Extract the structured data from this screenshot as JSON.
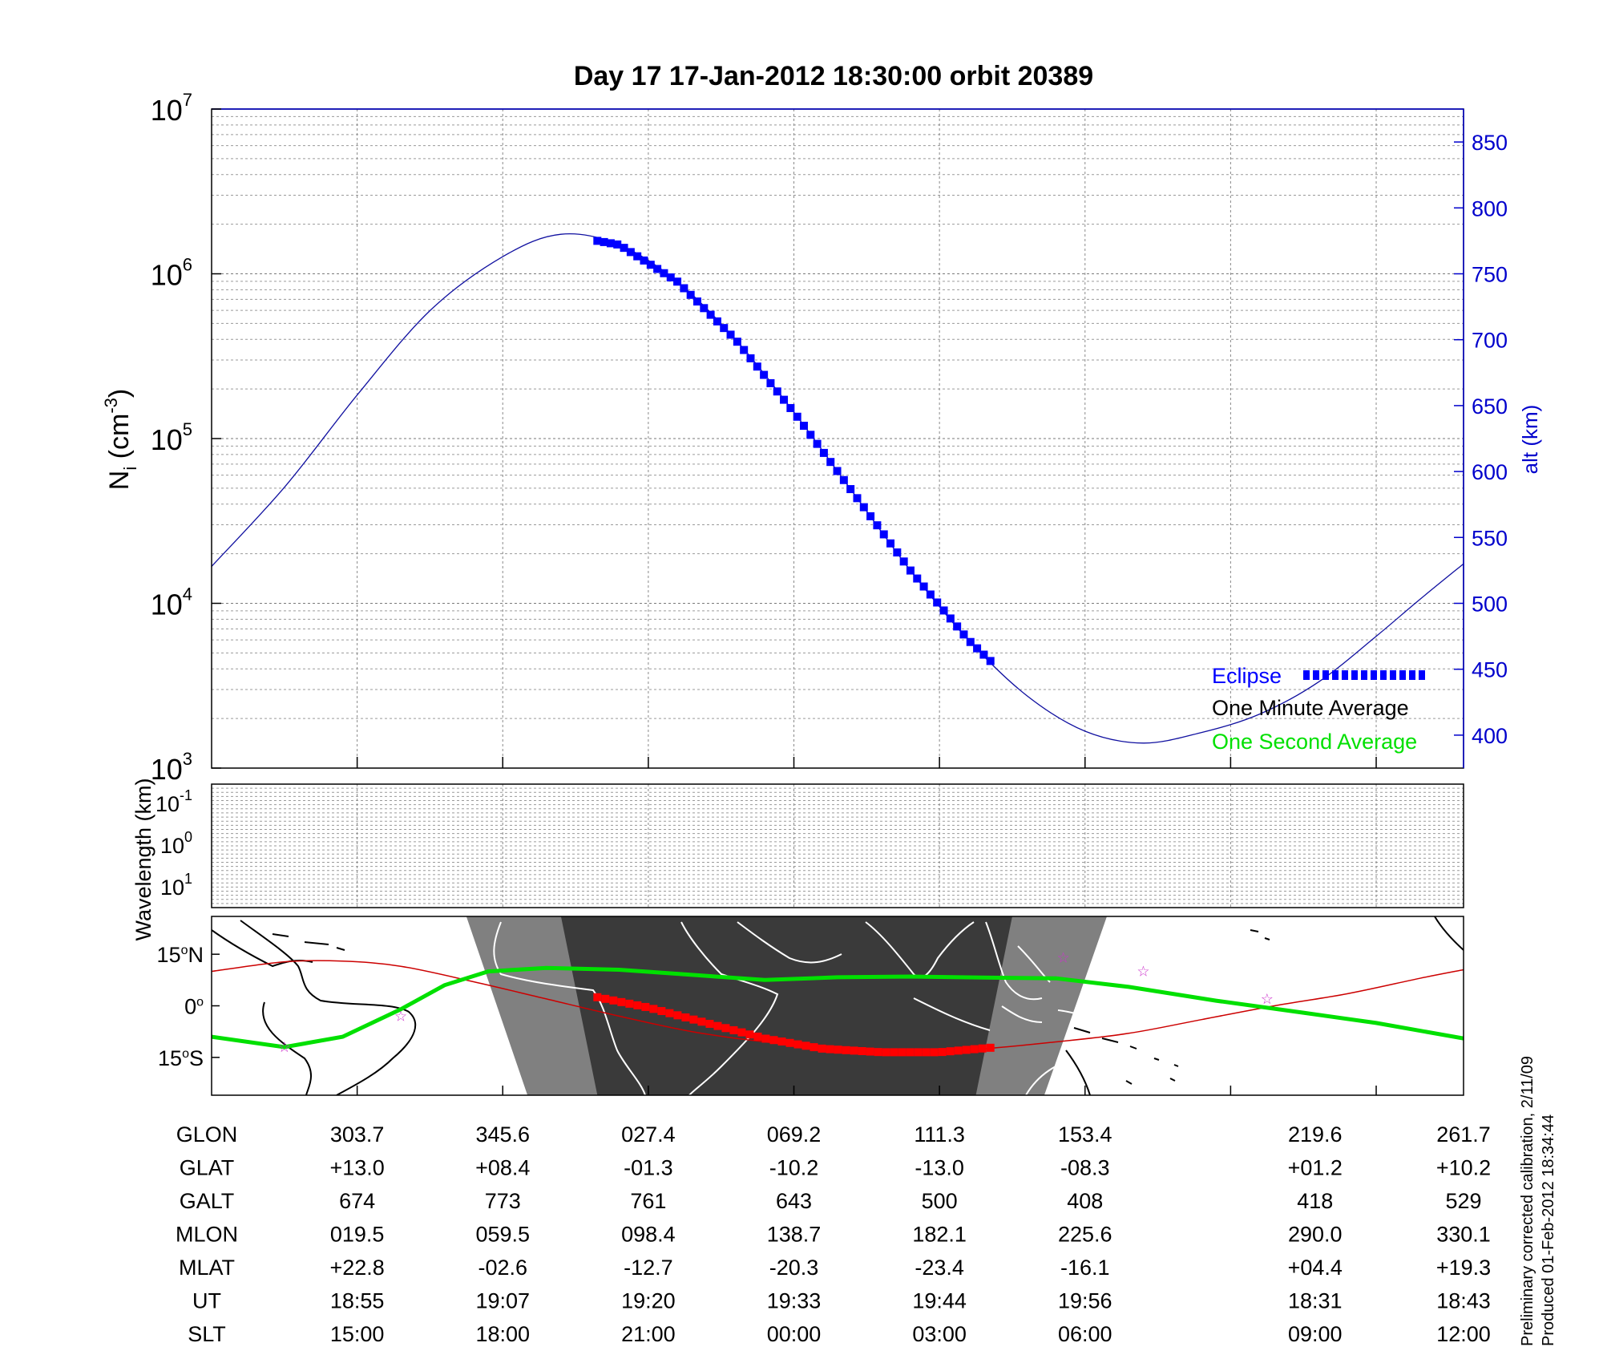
{
  "chart_data": [
    {
      "type": "line",
      "title": "Day 17  17-Jan-2012 18:30:00   orbit 20389",
      "ylabel": "N",
      "ylabel_sub": "i",
      "ylabel_unit": " (cm",
      "ylabel_exp": "-3",
      "ylabel_close": ")",
      "yscale": "log",
      "ylim": [
        1000,
        10000000
      ],
      "y_ticks": [
        {
          "base": "10",
          "exp": "3",
          "value": 1000
        },
        {
          "base": "10",
          "exp": "4",
          "value": 10000
        },
        {
          "base": "10",
          "exp": "5",
          "value": 100000
        },
        {
          "base": "10",
          "exp": "6",
          "value": 1000000
        },
        {
          "base": "10",
          "exp": "7",
          "value": 10000000
        }
      ],
      "y2label": "alt (km)",
      "y2lim": [
        375,
        875
      ],
      "y2_ticks": [
        "400",
        "450",
        "500",
        "550",
        "600",
        "650",
        "700",
        "750",
        "800",
        "850"
      ],
      "grid": true,
      "x_range": [
        0,
        8.6
      ],
      "x_tick_positions": [
        1,
        2,
        3,
        4,
        5,
        6,
        7,
        8
      ],
      "series": [
        {
          "name": "alt (km)",
          "axis": "right",
          "color": "#1010a0",
          "points": [
            [
              0,
              528
            ],
            [
              0.5,
              588
            ],
            [
              1.0,
              658
            ],
            [
              1.5,
              722
            ],
            [
              2.0,
              763
            ],
            [
              2.4,
              780
            ],
            [
              2.8,
              772
            ],
            [
              3.2,
              744
            ],
            [
              3.6,
              700
            ],
            [
              4.0,
              645
            ],
            [
              4.4,
              585
            ],
            [
              4.8,
              525
            ],
            [
              5.2,
              472
            ],
            [
              5.6,
              430
            ],
            [
              6.0,
              403
            ],
            [
              6.4,
              394
            ],
            [
              6.8,
              402
            ],
            [
              7.2,
              416
            ],
            [
              7.6,
              440
            ],
            [
              8.0,
              475
            ],
            [
              8.3,
              503
            ],
            [
              8.6,
              530
            ]
          ]
        },
        {
          "name": "Eclipse",
          "axis": "right",
          "color": "#0000ff",
          "marker": "square",
          "x_start": 2.65,
          "x_end": 5.35,
          "count": 60
        }
      ],
      "legend": {
        "position": "bottom-right",
        "entries": [
          {
            "label": "Eclipse",
            "color": "#0000ff",
            "marker": "square"
          },
          {
            "label": "One Minute Average",
            "color": "#000000",
            "marker": "none"
          },
          {
            "label": "One Second Average",
            "color": "#00e000",
            "marker": "none"
          }
        ]
      }
    },
    {
      "type": "line",
      "ylabel": "Wavelength (km)",
      "yscale": "log",
      "y_ticks": [
        {
          "base": "10",
          "exp": "-1"
        },
        {
          "base": "10",
          "exp": "0"
        },
        {
          "base": "10",
          "exp": "1"
        }
      ],
      "grid": true,
      "series": []
    },
    {
      "type": "map",
      "y_ticks": [
        {
          "value": "15",
          "unit": "N",
          "lat": 15
        },
        {
          "value": "0",
          "unit": "",
          "lat": 0
        },
        {
          "value": "15",
          "unit": "S",
          "lat": -15
        }
      ],
      "lat_range": [
        26,
        -26
      ],
      "night_band": {
        "outer": {
          "top": [
            1.75,
            6.15
          ],
          "bottom": [
            2.17,
            5.72
          ],
          "color": "#808080"
        },
        "inner": {
          "top": [
            2.4,
            5.5
          ],
          "bottom": [
            2.65,
            5.25
          ],
          "color": "#3a3a3a"
        }
      },
      "series": [
        {
          "name": "One Second Average",
          "color": "#00e000",
          "points": [
            [
              0,
              -9
            ],
            [
              0.5,
              -12
            ],
            [
              0.9,
              -9
            ],
            [
              1.3,
              -1
            ],
            [
              1.6,
              6
            ],
            [
              1.9,
              10
            ],
            [
              2.3,
              11
            ],
            [
              2.8,
              10.5
            ],
            [
              3.3,
              9
            ],
            [
              3.8,
              7.5
            ],
            [
              4.3,
              8.3
            ],
            [
              4.8,
              8.5
            ],
            [
              5.3,
              8.2
            ],
            [
              5.8,
              8
            ],
            [
              6.3,
              5.5
            ],
            [
              6.9,
              1.5
            ],
            [
              7.5,
              -2
            ],
            [
              8.0,
              -5
            ],
            [
              8.6,
              -9.5
            ]
          ]
        },
        {
          "name": "Eclipse ground track",
          "color": "#ff0000",
          "marker": "square",
          "points": [
            [
              2.65,
              2.5
            ],
            [
              3.0,
              -0.5
            ],
            [
              3.4,
              -5
            ],
            [
              3.8,
              -9.5
            ],
            [
              4.2,
              -12.5
            ],
            [
              4.6,
              -13.5
            ],
            [
              5.0,
              -13.5
            ],
            [
              5.35,
              -12.2
            ]
          ]
        },
        {
          "name": "Magnetic equator",
          "color": "#cc0000",
          "points": [
            [
              0,
              10
            ],
            [
              0.5,
              12.8
            ],
            [
              0.9,
              13
            ],
            [
              1.3,
              11.5
            ],
            [
              1.8,
              7
            ],
            [
              2.3,
              2
            ],
            [
              2.8,
              -3
            ],
            [
              3.3,
              -7.5
            ],
            [
              3.8,
              -10.5
            ],
            [
              4.3,
              -12.5
            ],
            [
              4.8,
              -13.5
            ],
            [
              5.3,
              -12.5
            ],
            [
              5.8,
              -10.5
            ],
            [
              6.3,
              -8
            ],
            [
              6.8,
              -4
            ],
            [
              7.3,
              0
            ],
            [
              7.8,
              3.5
            ],
            [
              8.3,
              8
            ],
            [
              8.6,
              10.5
            ]
          ]
        }
      ],
      "stars": [
        [
          0.5,
          -12
        ],
        [
          1.3,
          -3
        ],
        [
          5.85,
          14
        ],
        [
          6.4,
          10
        ],
        [
          7.25,
          2
        ]
      ]
    }
  ],
  "table": {
    "rows": [
      {
        "label": "GLON",
        "values": [
          "303.7",
          "345.6",
          "027.4",
          "069.2",
          "111.3",
          "153.4",
          "219.6",
          "261.7"
        ]
      },
      {
        "label": "GLAT",
        "values": [
          "+13.0",
          "+08.4",
          "-01.3",
          "-10.2",
          "-13.0",
          "-08.3",
          "+01.2",
          "+10.2"
        ]
      },
      {
        "label": "GALT",
        "values": [
          "674",
          "773",
          "761",
          "643",
          "500",
          "408",
          "418",
          "529"
        ]
      },
      {
        "label": "MLON",
        "values": [
          "019.5",
          "059.5",
          "098.4",
          "138.7",
          "182.1",
          "225.6",
          "290.0",
          "330.1"
        ]
      },
      {
        "label": "MLAT",
        "values": [
          "+22.8",
          "-02.6",
          "-12.7",
          "-20.3",
          "-23.4",
          "-16.1",
          "+04.4",
          "+19.3"
        ]
      },
      {
        "label": "UT",
        "values": [
          "18:55",
          "19:07",
          "19:20",
          "19:33",
          "19:44",
          "19:56",
          "18:31",
          "18:43"
        ]
      },
      {
        "label": "SLT",
        "values": [
          "15:00",
          "18:00",
          "21:00",
          "00:00",
          "03:00",
          "06:00",
          "09:00",
          "12:00"
        ]
      }
    ],
    "column_x": [
      1,
      2,
      3,
      4,
      5,
      6,
      7.58,
      8.6
    ]
  },
  "footer": {
    "line1": "Preliminary corrected calibration, 2/11/09",
    "line2": "Produced 01-Feb-2012 18:34:44"
  },
  "colors": {
    "altitude_line": "#1010a0",
    "right_axis": "#0000cc",
    "eclipse": "#0000ff",
    "one_second_average": "#00e000",
    "eclipse_track": "#ff0000",
    "magnetic_equator": "#cc0000",
    "night": "#3a3a3a",
    "twilight": "#808080"
  }
}
